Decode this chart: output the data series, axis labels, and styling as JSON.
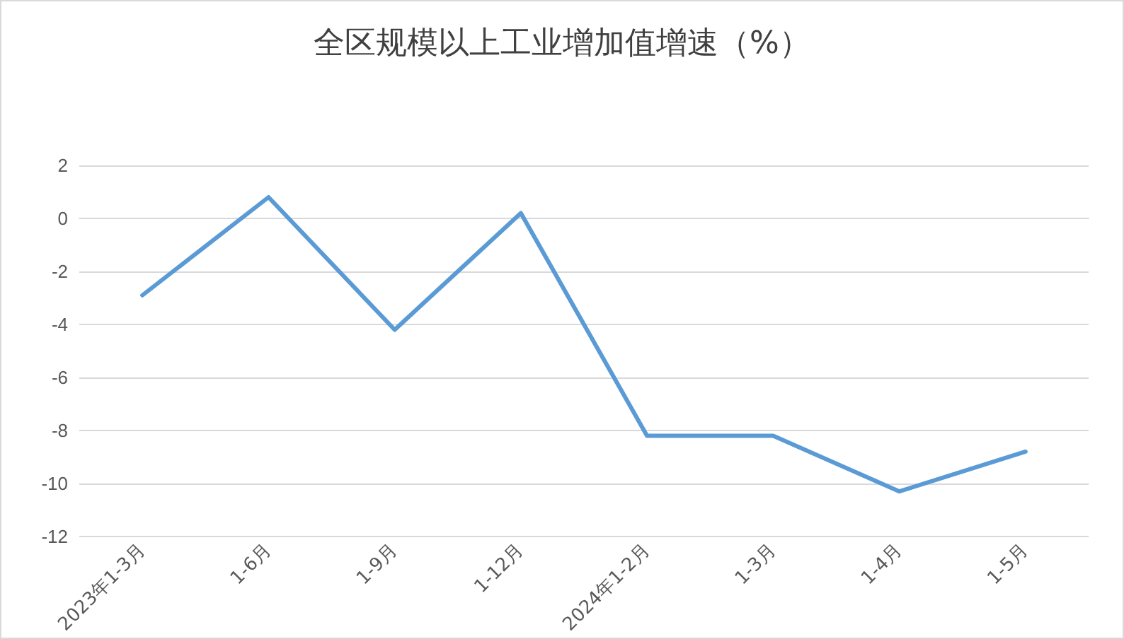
{
  "chart_data": {
    "type": "line",
    "title": "全区规模以上工业增加值增速（%）",
    "categories": [
      "2023年1-3月",
      "1-6月",
      "1-9月",
      "1-12月",
      "2024年1-2月",
      "1-3月",
      "1-4月",
      "1-5月"
    ],
    "series": [
      {
        "color": "#5b9bd5",
        "values": [
          -2.9,
          0.8,
          -4.2,
          0.2,
          -8.2,
          -8.2,
          -10.3,
          -8.8
        ]
      }
    ],
    "ylim": [
      -12,
      2
    ],
    "yticks": [
      -12,
      -10,
      -8,
      -6,
      -4,
      -2,
      0,
      2
    ],
    "grid": "y",
    "marker": "none",
    "line_style": "solid"
  }
}
